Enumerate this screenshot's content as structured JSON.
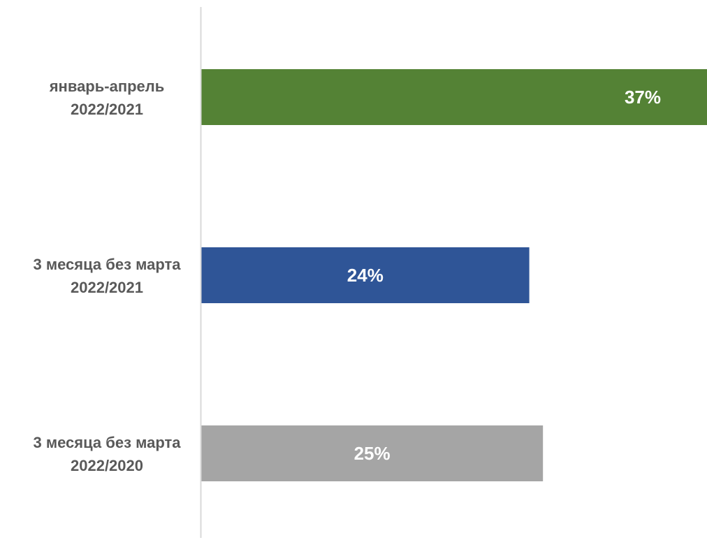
{
  "chart_data": {
    "type": "bar",
    "orientation": "horizontal",
    "categories": [
      [
        "январь-апрель",
        "2022/2021"
      ],
      [
        "3 месяца без марта",
        "2022/2021"
      ],
      [
        "3 месяца без марта",
        "2022/2020"
      ]
    ],
    "values": [
      37,
      24,
      25
    ],
    "value_labels": [
      "37%",
      "24%",
      "25%"
    ],
    "colors": [
      "#548235",
      "#2F5597",
      "#A5A5A5"
    ],
    "xlim": [
      0,
      37
    ],
    "title": "",
    "xlabel": "",
    "ylabel": "",
    "grid": false,
    "legend": "none",
    "axis_color": "#D9D9D9",
    "label_color": "#595959"
  }
}
